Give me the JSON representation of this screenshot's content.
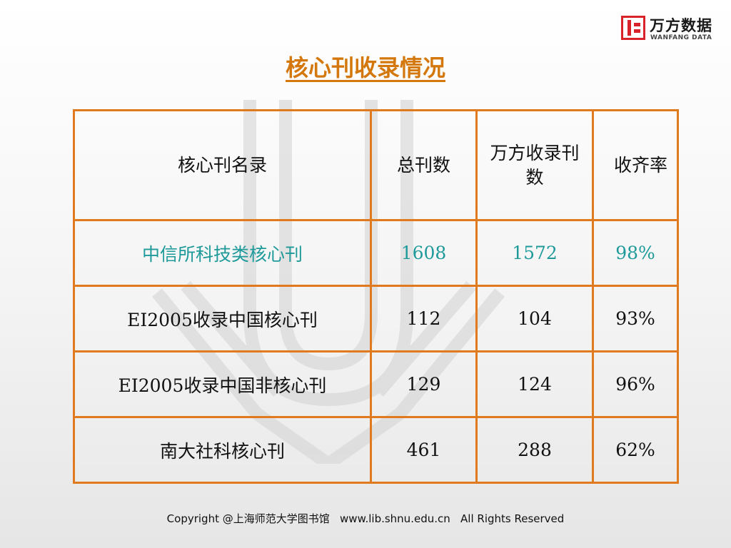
{
  "logo": {
    "name_cn": "万方数据",
    "name_en": "WANFANG DATA",
    "mark_color": "#d8232a"
  },
  "title": "核心刊收录情况",
  "table": {
    "headers": [
      "核心刊名录",
      "总刊数",
      "万方收录刊数",
      "收齐率"
    ],
    "rows": [
      [
        "中信所科技类核心刊",
        "1608",
        "1572",
        "98%"
      ],
      [
        "EI2005收录中国核心刊",
        "112",
        "104",
        "93%"
      ],
      [
        "EI2005收录中国非核心刊",
        "129",
        "124",
        "96%"
      ],
      [
        "南大社科核心刊",
        "461",
        "288",
        "62%"
      ]
    ],
    "highlight_color": "#1f9a9a",
    "border_color": "#e07a1f"
  },
  "footer": "Copyright @上海师范大学图书馆   www.lib.shnu.edu.cn   All Rights Reserved"
}
